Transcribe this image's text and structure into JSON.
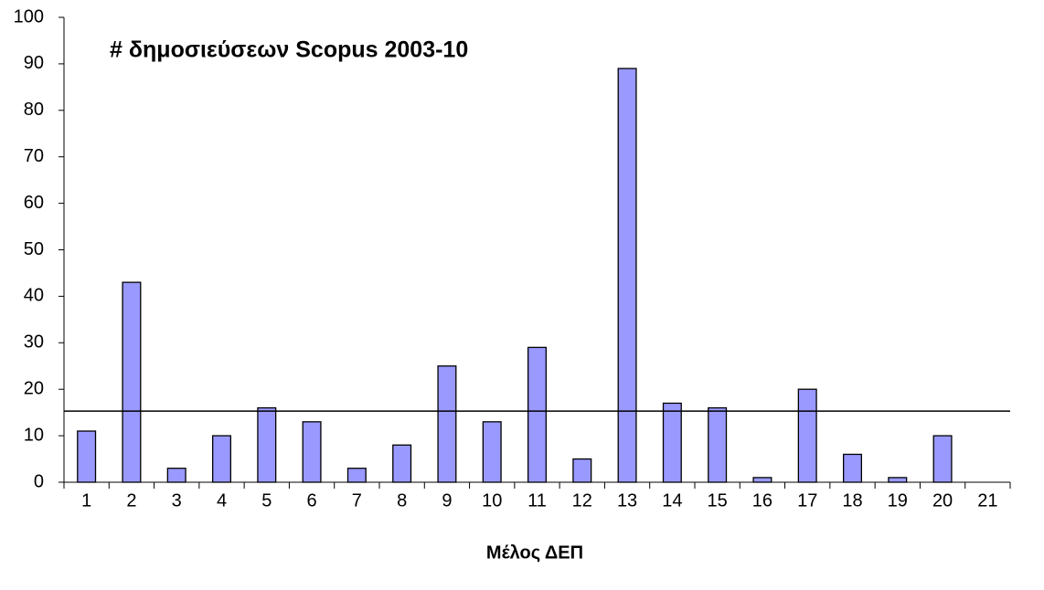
{
  "chart_data": {
    "type": "bar",
    "title": "# δημοσιεύσεων Scopus 2003-10",
    "x_label": "Μέλος ΔΕΠ",
    "categories": [
      "1",
      "2",
      "3",
      "4",
      "5",
      "6",
      "7",
      "8",
      "9",
      "10",
      "11",
      "12",
      "13",
      "14",
      "15",
      "16",
      "17",
      "18",
      "19",
      "20",
      "21"
    ],
    "values": [
      11,
      43,
      3,
      10,
      16,
      13,
      3,
      8,
      25,
      13,
      29,
      5,
      89,
      17,
      16,
      1,
      20,
      6,
      1,
      10,
      null
    ],
    "color": "#9999ff",
    "reference_line": 15.3,
    "ylim": [
      0,
      100
    ],
    "yticks": [
      0,
      10,
      20,
      30,
      40,
      50,
      60,
      70,
      80,
      90,
      100
    ],
    "grid": false
  }
}
